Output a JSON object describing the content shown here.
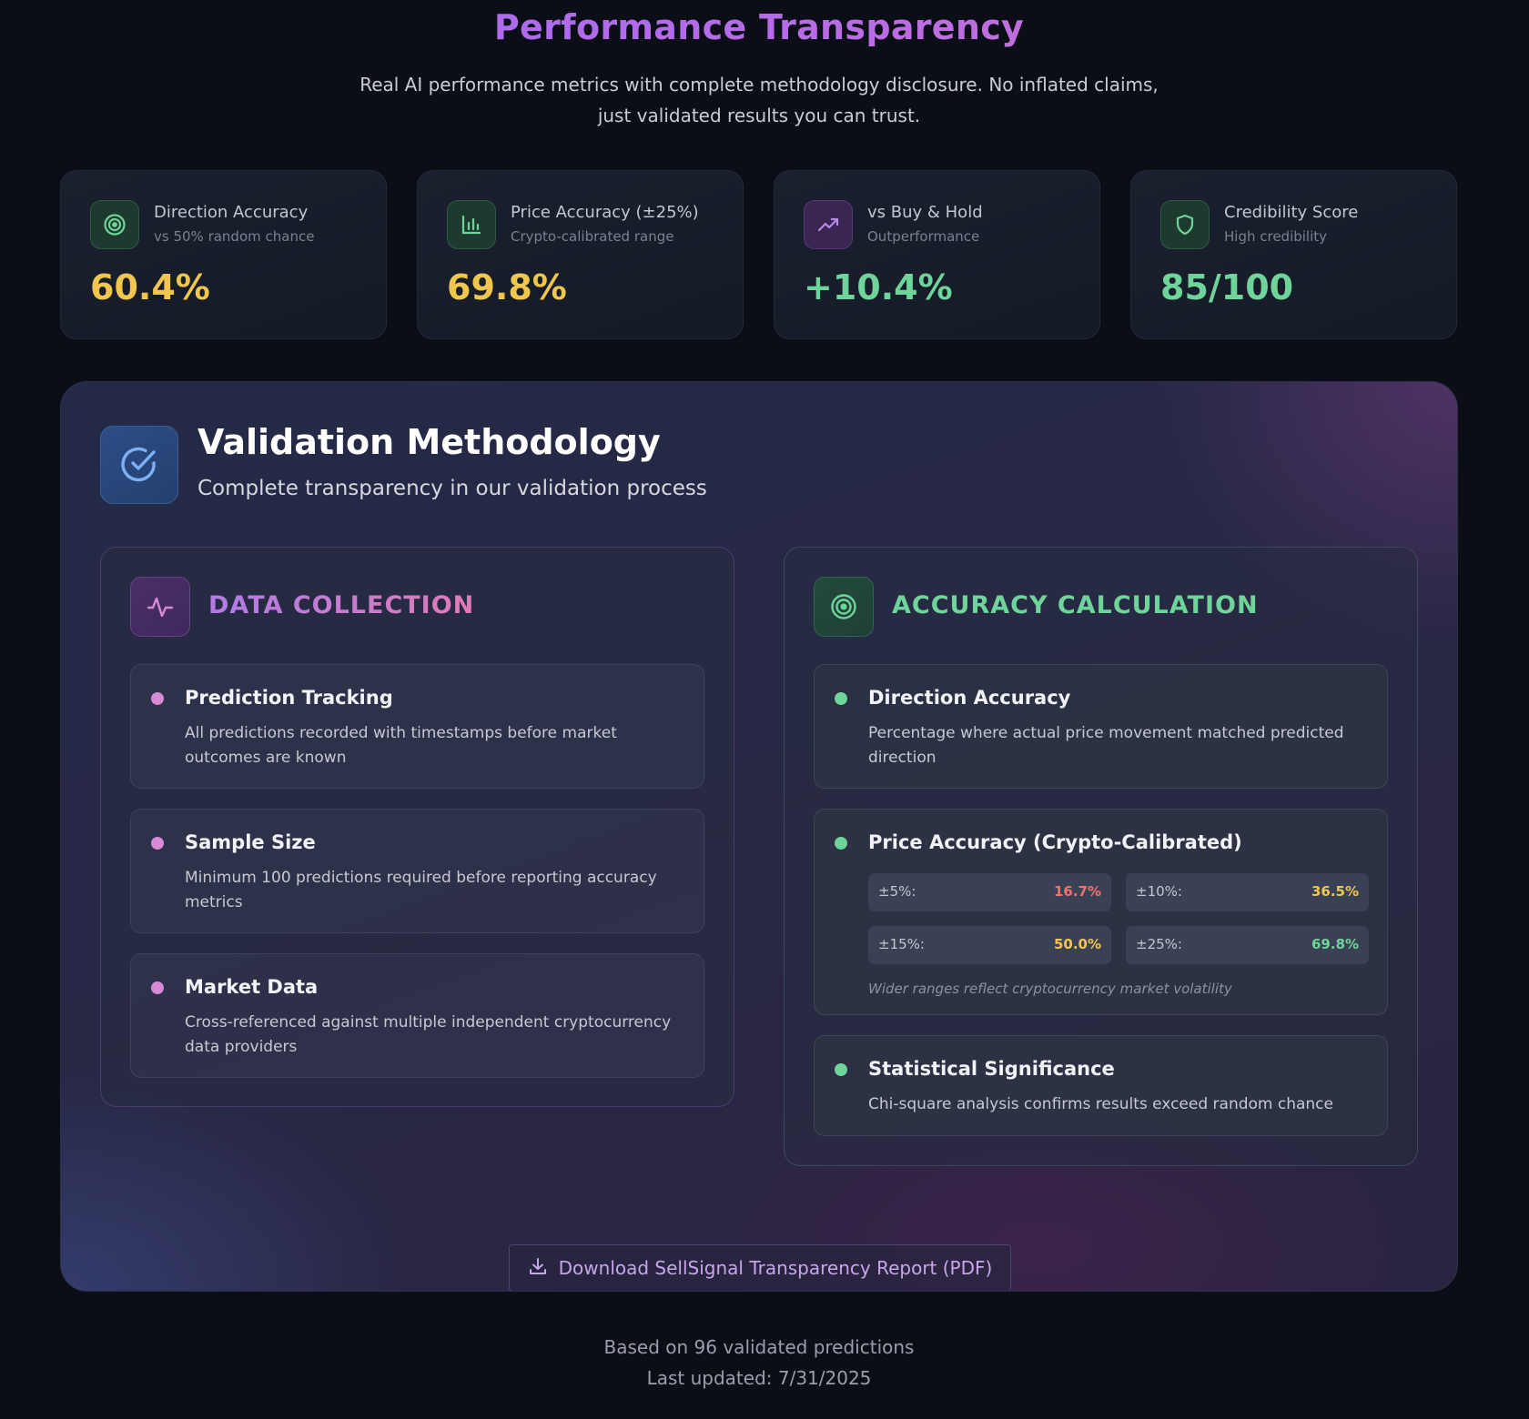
{
  "header": {
    "title": "Performance Transparency",
    "subtitle": "Real AI performance metrics with complete methodology disclosure. No inflated claims, just validated results you can trust."
  },
  "metrics": [
    {
      "label": "Direction Accuracy",
      "sub": "vs 50% random chance",
      "value": "60.4%",
      "icon": "target-icon",
      "color": "#f0c64d"
    },
    {
      "label": "Price Accuracy (±25%)",
      "sub": "Crypto-calibrated range",
      "value": "69.8%",
      "icon": "bar-chart-icon",
      "color": "#f0c64d"
    },
    {
      "label": "vs Buy & Hold",
      "sub": "Outperformance",
      "value": "+10.4%",
      "icon": "trending-up-icon",
      "color": "#6fd49a"
    },
    {
      "label": "Credibility Score",
      "sub": "High credibility",
      "value": "85/100",
      "icon": "shield-icon",
      "color": "#6fd49a"
    }
  ],
  "methodology": {
    "title": "Validation Methodology",
    "subtitle": "Complete transparency in our validation process",
    "data_collection": {
      "title": "DATA COLLECTION",
      "items": [
        {
          "title": "Prediction Tracking",
          "desc": "All predictions recorded with timestamps before market outcomes are known"
        },
        {
          "title": "Sample Size",
          "desc": "Minimum 100 predictions required before reporting accuracy metrics"
        },
        {
          "title": "Market Data",
          "desc": "Cross-referenced against multiple independent cryptocurrency data providers"
        }
      ]
    },
    "accuracy_calculation": {
      "title": "ACCURACY CALCULATION",
      "items": [
        {
          "title": "Direction Accuracy",
          "desc": "Percentage where actual price movement matched predicted direction"
        },
        {
          "title": "Price Accuracy (Crypto-Calibrated)",
          "desc": ""
        },
        {
          "title": "Statistical Significance",
          "desc": "Chi-square analysis confirms results exceed random chance"
        }
      ],
      "ranges": [
        {
          "label": "±5%:",
          "value": "16.7%",
          "color": "#f2736e"
        },
        {
          "label": "±10%:",
          "value": "36.5%",
          "color": "#f0c64d"
        },
        {
          "label": "±15%:",
          "value": "50.0%",
          "color": "#f0c64d"
        },
        {
          "label": "±25%:",
          "value": "69.8%",
          "color": "#6fd49a"
        }
      ],
      "range_note": "Wider ranges reflect cryptocurrency market volatility"
    },
    "download_label": "Download SellSignal Transparency Report (PDF)"
  },
  "footer": {
    "line1": "Based on 96 validated predictions",
    "line2": "Last updated: 7/31/2025"
  }
}
